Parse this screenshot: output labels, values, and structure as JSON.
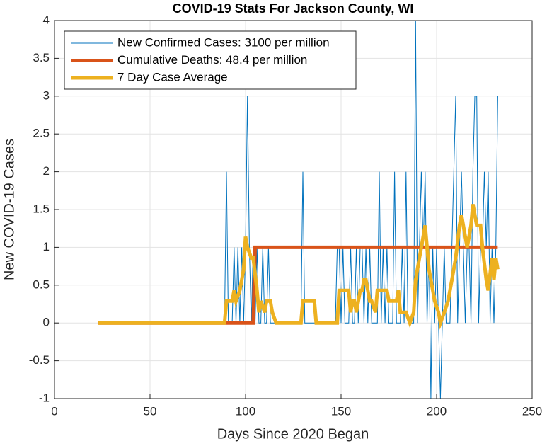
{
  "chart_data": {
    "type": "line",
    "title": "COVID-19 Stats For Jackson County, WI",
    "xlabel": "Days Since 2020 Began",
    "ylabel": "New COVID-19 Cases",
    "xlim": [
      0,
      250
    ],
    "xticks": [
      0,
      50,
      100,
      150,
      200,
      250
    ],
    "ylim": [
      -1,
      4
    ],
    "yticks": [
      -1,
      -0.5,
      0,
      0.5,
      1,
      1.5,
      2,
      2.5,
      3,
      3.5,
      4
    ],
    "grid": true,
    "legend_position": "upper-left",
    "series": [
      {
        "name": "New Confirmed Cases: 3100 per million",
        "color": "#0072BD",
        "x": [
          23,
          89,
          90,
          91,
          92,
          93,
          94,
          95,
          96,
          97,
          98,
          99,
          100,
          101,
          102,
          103,
          104,
          105,
          106,
          107,
          108,
          109,
          110,
          111,
          112,
          113,
          114,
          115,
          116,
          117,
          118,
          119,
          120,
          121,
          122,
          123,
          124,
          125,
          126,
          127,
          128,
          129,
          130,
          131,
          132,
          133,
          134,
          135,
          136,
          137,
          138,
          139,
          140,
          141,
          142,
          143,
          144,
          145,
          146,
          147,
          148,
          149,
          150,
          151,
          152,
          153,
          154,
          155,
          156,
          157,
          158,
          159,
          160,
          161,
          162,
          163,
          164,
          165,
          166,
          167,
          168,
          169,
          170,
          171,
          172,
          173,
          174,
          175,
          176,
          177,
          178,
          179,
          180,
          181,
          182,
          183,
          184,
          185,
          186,
          187,
          188,
          189,
          190,
          191,
          192,
          193,
          194,
          195,
          196,
          197,
          198,
          199,
          200,
          201,
          202,
          203,
          204,
          205,
          206,
          207,
          208,
          209,
          210,
          211,
          212,
          213,
          214,
          215,
          216,
          217,
          218,
          219,
          220,
          221,
          222,
          223,
          224,
          225,
          226,
          227,
          228,
          229,
          230,
          231,
          232
        ],
        "values": [
          0,
          0,
          2,
          0,
          0,
          0,
          1,
          0,
          1,
          0,
          1,
          0,
          1,
          3,
          1,
          0,
          1,
          0,
          1,
          0,
          0,
          1,
          0,
          0,
          1,
          0,
          0,
          0,
          0,
          0,
          0,
          0,
          0,
          0,
          0,
          0,
          0,
          0,
          0,
          0,
          0,
          0,
          2,
          0,
          0,
          0,
          0,
          0,
          0,
          0,
          0,
          0,
          0,
          0,
          0,
          0,
          0,
          0,
          0,
          0,
          1,
          1,
          0,
          1,
          0,
          0,
          0,
          1,
          0,
          0,
          1,
          0,
          1,
          1,
          0,
          1,
          0,
          1,
          0,
          0,
          0,
          0,
          2,
          0,
          1,
          0,
          1,
          0,
          0,
          0,
          2,
          0,
          0,
          0,
          1,
          0,
          2,
          0,
          0,
          0,
          0,
          4,
          0,
          1,
          2,
          1,
          2,
          0,
          1,
          -1,
          1,
          0,
          1,
          0,
          -1,
          0,
          1,
          0,
          0,
          0,
          1,
          2,
          3,
          0,
          1,
          2,
          1,
          0,
          1,
          1,
          0,
          2,
          3,
          3,
          0,
          1,
          1,
          2,
          1,
          2,
          0,
          1,
          0,
          1,
          3
        ]
      },
      {
        "name": "Cumulative Deaths: 48.4 per million",
        "color": "#D95319",
        "x": [
          23,
          104,
          105,
          232
        ],
        "values": [
          0,
          0,
          1,
          1
        ]
      },
      {
        "name": "7 Day Case Average",
        "color": "#EDB120",
        "x": [
          23,
          89,
          90,
          93,
          94,
          95,
          97,
          99,
          100,
          101,
          103,
          104,
          106,
          107,
          108,
          110,
          111,
          113,
          114,
          116,
          129,
          130,
          136,
          137,
          148,
          149,
          154,
          155,
          156,
          157,
          158,
          160,
          161,
          162,
          163,
          164,
          165,
          166,
          168,
          169,
          174,
          175,
          179,
          180,
          181,
          184,
          186,
          188,
          189,
          191,
          192,
          194,
          195,
          196,
          198,
          199,
          201,
          202,
          204,
          206,
          208,
          210,
          212,
          213,
          215,
          216,
          218,
          219,
          221,
          223,
          224,
          226,
          227,
          229,
          230,
          231,
          232
        ],
        "values": [
          0,
          0,
          0.29,
          0.29,
          0.43,
          0.29,
          0.43,
          0.71,
          1.14,
          1.0,
          0.86,
          0.86,
          0.43,
          0.14,
          0.29,
          0.14,
          0.29,
          0.29,
          0.14,
          0,
          0,
          0.29,
          0.29,
          0,
          0,
          0.43,
          0.43,
          0.14,
          0.29,
          0.29,
          0.14,
          0.43,
          0.43,
          0.57,
          0.57,
          0.43,
          0.29,
          0.29,
          0.14,
          0.43,
          0.43,
          0.29,
          0.29,
          0.43,
          0.14,
          0.14,
          0,
          0.14,
          0.57,
          0.86,
          1.0,
          1.29,
          1.0,
          0.71,
          0.43,
          0.29,
          0.14,
          0,
          0.14,
          0.29,
          0.57,
          0.86,
          1.29,
          1.43,
          1.14,
          1.0,
          1.29,
          1.57,
          1.29,
          1.29,
          1.0,
          0.57,
          0.43,
          0.86,
          0.57,
          0.86,
          0.71
        ]
      }
    ]
  }
}
